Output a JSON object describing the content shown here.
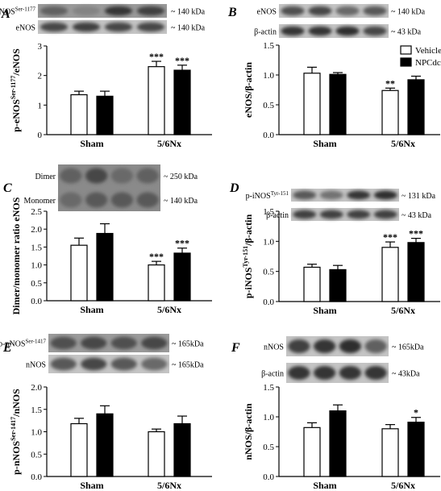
{
  "figure": {
    "legend": {
      "vehicle": "Vehicle",
      "npcdc": "NPCdc"
    },
    "panels": [
      {
        "label": "A",
        "blot": {
          "rows": [
            {
              "label": "p-eNOS",
              "sup": "Ser-1177",
              "kda": "~ 140 kDa",
              "bands": [
                0.55,
                0.35,
                0.8,
                0.75
              ]
            },
            {
              "label": "eNOS",
              "sup": "",
              "kda": "~ 140 kDa",
              "bands": [
                0.7,
                0.75,
                0.7,
                0.7
              ]
            }
          ]
        },
        "chart_data": {
          "type": "bar",
          "categories": [
            "Sham",
            "5/6Nx"
          ],
          "ylabel": "p-eNOS",
          "ylabel_sup": "Ser-1177",
          "ylabel_suffix": "/eNOS",
          "ylim": [
            0,
            3
          ],
          "yticks": [
            "0",
            "1",
            "2",
            "3"
          ],
          "series": [
            {
              "name": "Vehicle",
              "values": [
                1.35,
                2.3
              ],
              "errors": [
                0.12,
                0.18
              ]
            },
            {
              "name": "NPCdc",
              "values": [
                1.3,
                2.18
              ],
              "errors": [
                0.17,
                0.17
              ]
            }
          ],
          "sig": [
            [
              "",
              "***"
            ],
            [
              "",
              "***"
            ]
          ]
        }
      },
      {
        "label": "B",
        "blot": {
          "rows": [
            {
              "label": "eNOS",
              "sup": "",
              "kda": "~ 140 kDa",
              "bands": [
                0.65,
                0.7,
                0.5,
                0.6
              ]
            },
            {
              "label": "β-actin",
              "sup": "",
              "kda": "~ 43 kDa",
              "bands": [
                0.8,
                0.8,
                0.85,
                0.7
              ]
            }
          ]
        },
        "chart_data": {
          "type": "bar",
          "categories": [
            "Sham",
            "5/6Nx"
          ],
          "ylabel": "eNOS/β-actin",
          "ylabel_sup": "",
          "ylabel_suffix": "",
          "ylim": [
            0,
            1.5
          ],
          "yticks": [
            "0.0",
            "0.5",
            "1.0",
            "1.5"
          ],
          "series": [
            {
              "name": "Vehicle",
              "values": [
                1.03,
                0.74
              ],
              "errors": [
                0.1,
                0.04
              ]
            },
            {
              "name": "NPCdc",
              "values": [
                1.01,
                0.92
              ],
              "errors": [
                0.03,
                0.06
              ]
            }
          ],
          "sig": [
            [
              "",
              "**"
            ],
            [
              "",
              ""
            ]
          ]
        }
      },
      {
        "label": "C",
        "blot": {
          "rows": [
            {
              "label": "Dimer",
              "sup": "",
              "kda": "~ 250 kDa",
              "bands": [
                0.55,
                0.7,
                0.5,
                0.55
              ]
            },
            {
              "label": "Monomer",
              "sup": "",
              "kda": "~ 140 kDa",
              "bands": [
                0.5,
                0.6,
                0.6,
                0.6
              ]
            }
          ]
        },
        "chart_data": {
          "type": "bar",
          "categories": [
            "Sham",
            "5/6Nx"
          ],
          "ylabel": "Dimer/monomer ratio eNOS",
          "ylabel_sup": "",
          "ylabel_suffix": "",
          "ylim": [
            0,
            2.5
          ],
          "yticks": [
            "0.0",
            "0.5",
            "1.0",
            "1.5",
            "2.0",
            "2.5"
          ],
          "series": [
            {
              "name": "Vehicle",
              "values": [
                1.55,
                1.0
              ],
              "errors": [
                0.2,
                0.1
              ]
            },
            {
              "name": "NPCdc",
              "values": [
                1.88,
                1.33
              ],
              "errors": [
                0.27,
                0.14
              ]
            }
          ],
          "sig": [
            [
              "",
              "***"
            ],
            [
              "",
              "***"
            ]
          ]
        }
      },
      {
        "label": "D",
        "blot": {
          "rows": [
            {
              "label": "p-iNOS",
              "sup": "Tyr-151",
              "kda": "~ 131 kDa",
              "bands": [
                0.6,
                0.45,
                0.8,
                0.85
              ]
            },
            {
              "label": "β-actin",
              "sup": "",
              "kda": "~ 43 kDa",
              "bands": [
                0.75,
                0.75,
                0.75,
                0.75
              ]
            }
          ]
        },
        "chart_data": {
          "type": "bar",
          "categories": [
            "Sham",
            "5/6Nx"
          ],
          "ylabel": "p-iNOS",
          "ylabel_sup": "Tyr-151",
          "ylabel_suffix": "/β-actin",
          "ylim": [
            0,
            1.5
          ],
          "yticks": [
            "0.0",
            "0.5",
            "1.0",
            "1.5"
          ],
          "series": [
            {
              "name": "Vehicle",
              "values": [
                0.57,
                0.9
              ],
              "errors": [
                0.05,
                0.09
              ]
            },
            {
              "name": "NPCdc",
              "values": [
                0.53,
                0.98
              ],
              "errors": [
                0.07,
                0.07
              ]
            }
          ],
          "sig": [
            [
              "",
              "***"
            ],
            [
              "",
              "***"
            ]
          ]
        }
      },
      {
        "label": "E",
        "blot": {
          "rows": [
            {
              "label": "p-nNOS",
              "sup": "Ser-1417",
              "kda": "~ 165kDa",
              "bands": [
                0.65,
                0.7,
                0.65,
                0.7
              ]
            },
            {
              "label": "nNOS",
              "sup": "",
              "kda": "~ 165kDa",
              "bands": [
                0.6,
                0.7,
                0.6,
                0.5
              ]
            }
          ]
        },
        "chart_data": {
          "type": "bar",
          "categories": [
            "Sham",
            "5/6Nx"
          ],
          "ylabel": "p-nNOS",
          "ylabel_sup": "Ser-1417",
          "ylabel_suffix": "/nNOS",
          "ylim": [
            0,
            2.0
          ],
          "yticks": [
            "0.0",
            "0.5",
            "1.0",
            "1.5",
            "2.0"
          ],
          "series": [
            {
              "name": "Vehicle",
              "values": [
                1.18,
                1.0
              ],
              "errors": [
                0.12,
                0.06
              ]
            },
            {
              "name": "NPCdc",
              "values": [
                1.4,
                1.18
              ],
              "errors": [
                0.18,
                0.17
              ]
            }
          ],
          "sig": [
            [
              "",
              ""
            ],
            [
              "",
              ""
            ]
          ]
        }
      },
      {
        "label": "F",
        "blot": {
          "rows": [
            {
              "label": "nNOS",
              "sup": "",
              "kda": "~ 165kDa",
              "bands": [
                0.75,
                0.8,
                0.85,
                0.55
              ]
            },
            {
              "label": "β-actin",
              "sup": "",
              "kda": "~ 43kDa",
              "bands": [
                0.8,
                0.8,
                0.8,
                0.8
              ]
            }
          ]
        },
        "chart_data": {
          "type": "bar",
          "categories": [
            "Sham",
            "5/6Nx"
          ],
          "ylabel": "nNOS/β-actin",
          "ylabel_sup": "",
          "ylabel_suffix": "",
          "ylim": [
            0,
            1.5
          ],
          "yticks": [
            "0.0",
            "0.5",
            "1.0",
            "1.5"
          ],
          "series": [
            {
              "name": "Vehicle",
              "values": [
                0.82,
                0.8
              ],
              "errors": [
                0.08,
                0.07
              ]
            },
            {
              "name": "NPCdc",
              "values": [
                1.1,
                0.91
              ],
              "errors": [
                0.1,
                0.08
              ]
            }
          ],
          "sig": [
            [
              "",
              ""
            ],
            [
              "",
              "*"
            ]
          ]
        }
      }
    ]
  }
}
